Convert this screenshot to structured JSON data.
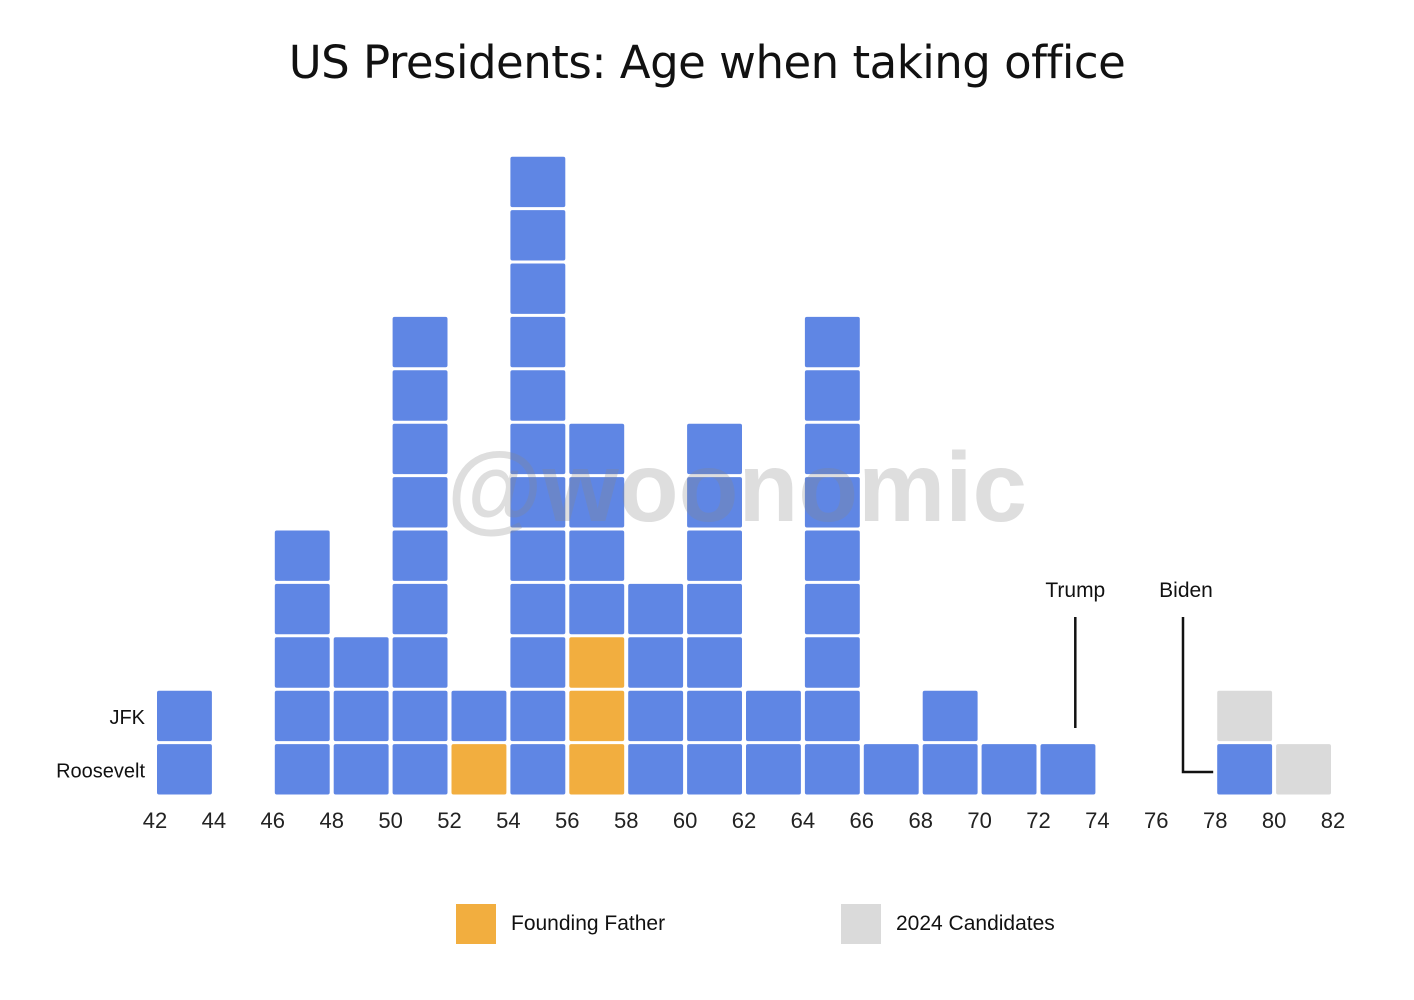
{
  "chart_data": {
    "type": "bar",
    "title": "US Presidents: Age when taking office",
    "xlabel": "",
    "ylabel": "",
    "x_ticks": [
      "42",
      "44",
      "46",
      "48",
      "50",
      "52",
      "54",
      "56",
      "58",
      "60",
      "62",
      "64",
      "66",
      "68",
      "70",
      "72",
      "74",
      "76",
      "78",
      "80",
      "82"
    ],
    "xlim": [
      42,
      82
    ],
    "bin_width": 2,
    "series": [
      {
        "name": "",
        "color": "#5f86e4",
        "bins": [
          {
            "x": [
              42,
              44
            ],
            "count": 2
          },
          {
            "x": [
              46,
              48
            ],
            "count": 5
          },
          {
            "x": [
              48,
              50
            ],
            "count": 3
          },
          {
            "x": [
              50,
              52
            ],
            "count": 9
          },
          {
            "x": [
              52,
              54
            ],
            "count": 1
          },
          {
            "x": [
              54,
              56
            ],
            "count": 12
          },
          {
            "x": [
              56,
              58
            ],
            "count": 4
          },
          {
            "x": [
              58,
              60
            ],
            "count": 4
          },
          {
            "x": [
              60,
              62
            ],
            "count": 7
          },
          {
            "x": [
              62,
              64
            ],
            "count": 2
          },
          {
            "x": [
              64,
              66
            ],
            "count": 9
          },
          {
            "x": [
              66,
              68
            ],
            "count": 1
          },
          {
            "x": [
              68,
              70
            ],
            "count": 2
          },
          {
            "x": [
              70,
              72
            ],
            "count": 1
          },
          {
            "x": [
              72,
              74
            ],
            "count": 1
          },
          {
            "x": [
              78,
              80
            ],
            "count": 1
          }
        ]
      },
      {
        "name": "Founding Father",
        "color": "#f2ae3f",
        "bins": [
          {
            "x": [
              52,
              54
            ],
            "count": 1
          },
          {
            "x": [
              56,
              58
            ],
            "count": 3
          }
        ]
      },
      {
        "name": "2024 Candidates",
        "color": "#dadada",
        "bins": [
          {
            "x": [
              78,
              80
            ],
            "count": 1
          },
          {
            "x": [
              80,
              82
            ],
            "count": 1
          }
        ]
      }
    ],
    "stacks": {
      "42": [
        "P",
        "P"
      ],
      "46": [
        "P",
        "P",
        "P",
        "P",
        "P"
      ],
      "48": [
        "P",
        "P",
        "P"
      ],
      "50": [
        "P",
        "P",
        "P",
        "P",
        "P",
        "P",
        "P",
        "P",
        "P"
      ],
      "52": [
        "F",
        "P"
      ],
      "54": [
        "P",
        "P",
        "P",
        "P",
        "P",
        "P",
        "P",
        "P",
        "P",
        "P",
        "P",
        "P"
      ],
      "56": [
        "F",
        "F",
        "F",
        "P",
        "P",
        "P",
        "P"
      ],
      "58": [
        "P",
        "P",
        "P",
        "P"
      ],
      "60": [
        "P",
        "P",
        "P",
        "P",
        "P",
        "P",
        "P"
      ],
      "62": [
        "P",
        "P"
      ],
      "64": [
        "P",
        "P",
        "P",
        "P",
        "P",
        "P",
        "P",
        "P",
        "P"
      ],
      "66": [
        "P"
      ],
      "68": [
        "P",
        "P"
      ],
      "70": [
        "P"
      ],
      "72": [
        "P"
      ],
      "78": [
        "P",
        "C"
      ],
      "80": [
        "C"
      ]
    },
    "row_labels": [
      "Roosevelt",
      "JFK"
    ],
    "annotations": [
      {
        "text": "Trump",
        "age": 73
      },
      {
        "text": "Biden",
        "age": 78
      }
    ],
    "legend": {
      "position": "bottom",
      "items": [
        {
          "label": "Founding Father",
          "color": "#f2ae3f"
        },
        {
          "label": "2024 Candidates",
          "color": "#dadada"
        }
      ]
    },
    "watermark": "@woonomic",
    "grid": false
  }
}
